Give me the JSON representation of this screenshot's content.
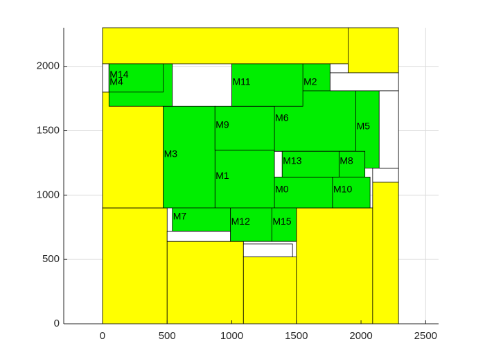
{
  "chart_data": {
    "type": "floorplan",
    "title": "",
    "xlabel": "",
    "ylabel": "",
    "xlim": [
      -300,
      2600
    ],
    "ylim": [
      0,
      2300
    ],
    "grid": true,
    "xticks": [
      0,
      500,
      1000,
      1500,
      2000,
      2500
    ],
    "yticks": [
      0,
      500,
      1000,
      1500,
      2000
    ],
    "xtick_labels": [
      "0",
      "500",
      "1000",
      "1500",
      "2000",
      "2500"
    ],
    "ytick_labels": [
      "0",
      "500",
      "1000",
      "1500",
      "2000"
    ],
    "colors": {
      "module": "#00ee00",
      "filler": "#ffff00",
      "empty": "#ffffff",
      "edge": "#000000"
    },
    "filler_blocks": [
      {
        "x": 0,
        "y": 0,
        "w": 500,
        "h": 900
      },
      {
        "x": 500,
        "y": 0,
        "w": 590,
        "h": 640
      },
      {
        "x": 1090,
        "y": 0,
        "w": 410,
        "h": 520
      },
      {
        "x": 1500,
        "y": 0,
        "w": 590,
        "h": 900
      },
      {
        "x": 2090,
        "y": 0,
        "w": 200,
        "h": 1100
      },
      {
        "x": 0,
        "y": 900,
        "w": 470,
        "h": 900
      },
      {
        "x": 0,
        "y": 2020,
        "w": 1900,
        "h": 280
      },
      {
        "x": 1900,
        "y": 1950,
        "w": 390,
        "h": 350
      }
    ],
    "empty_blocks": [
      {
        "x": 0,
        "y": 1800,
        "w": 50,
        "h": 220
      },
      {
        "x": 500,
        "y": 640,
        "w": 490,
        "h": 80
      },
      {
        "x": 1090,
        "y": 520,
        "w": 380,
        "h": 100
      },
      {
        "x": 1330,
        "y": 1140,
        "w": 60,
        "h": 200
      },
      {
        "x": 1760,
        "y": 1950,
        "w": 140,
        "h": 70
      },
      {
        "x": 1760,
        "y": 1810,
        "w": 530,
        "h": 140
      },
      {
        "x": 2090,
        "y": 1100,
        "w": 200,
        "h": 110
      },
      {
        "x": 2140,
        "y": 1210,
        "w": 150,
        "h": 600
      }
    ],
    "modules": [
      {
        "name": "M0",
        "x": 1330,
        "y": 900,
        "w": 450,
        "h": 240
      },
      {
        "name": "M1",
        "x": 870,
        "y": 900,
        "w": 460,
        "h": 450
      },
      {
        "name": "M2",
        "x": 1550,
        "y": 1690,
        "w": 210,
        "h": 330
      },
      {
        "name": "M3",
        "x": 470,
        "y": 900,
        "w": 400,
        "h": 790
      },
      {
        "name": "M4",
        "x": 50,
        "y": 1690,
        "w": 490,
        "h": 330
      },
      {
        "name": "M5",
        "x": 1960,
        "y": 1210,
        "w": 180,
        "h": 600
      },
      {
        "name": "M6",
        "x": 1330,
        "y": 1340,
        "w": 630,
        "h": 470
      },
      {
        "name": "M7",
        "x": 540,
        "y": 720,
        "w": 450,
        "h": 180
      },
      {
        "name": "M8",
        "x": 1830,
        "y": 1140,
        "w": 200,
        "h": 200
      },
      {
        "name": "M9",
        "x": 870,
        "y": 1350,
        "w": 460,
        "h": 340
      },
      {
        "name": "M10",
        "x": 1780,
        "y": 900,
        "w": 290,
        "h": 240
      },
      {
        "name": "M11",
        "x": 1000,
        "y": 1690,
        "w": 550,
        "h": 330
      },
      {
        "name": "M12",
        "x": 990,
        "y": 640,
        "w": 320,
        "h": 260
      },
      {
        "name": "M13",
        "x": 1390,
        "y": 1140,
        "w": 440,
        "h": 200
      },
      {
        "name": "M14",
        "x": 50,
        "y": 1800,
        "w": 420,
        "h": 220
      },
      {
        "name": "M15",
        "x": 1310,
        "y": 640,
        "w": 190,
        "h": 260
      }
    ]
  }
}
